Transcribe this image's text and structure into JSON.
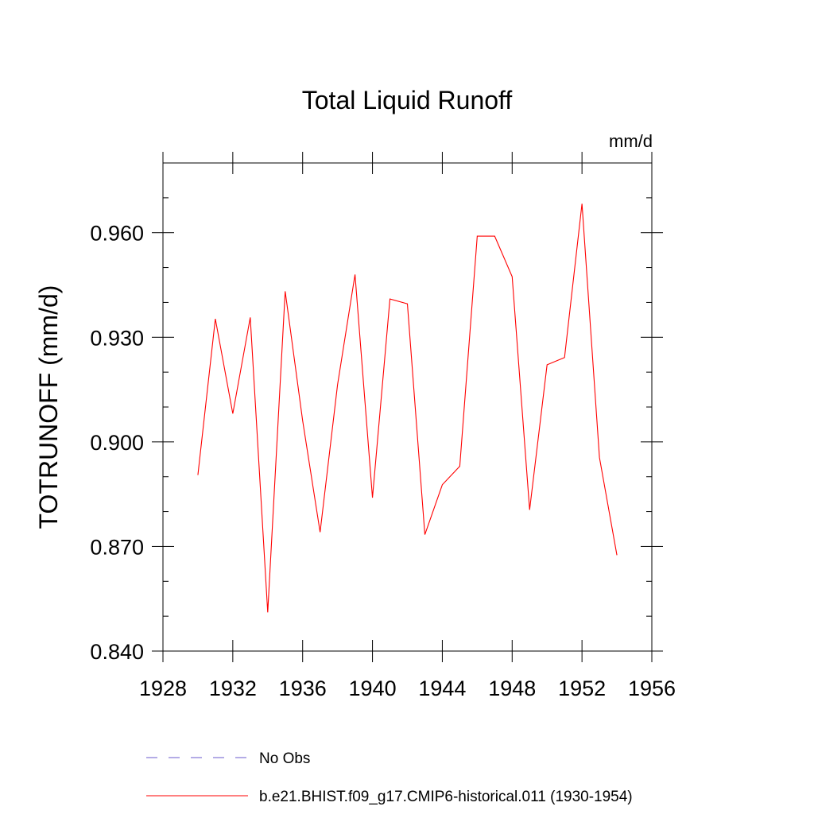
{
  "chart_data": {
    "type": "line",
    "title": "Total Liquid Runoff",
    "units_label": "mm/d",
    "ylabel": "TOTRUNOFF  (mm/d)",
    "xlabel": "",
    "xlim": [
      1928,
      1956
    ],
    "ylim": [
      0.84,
      0.98
    ],
    "x_ticks": [
      1928,
      1932,
      1936,
      1940,
      1944,
      1948,
      1952,
      1956
    ],
    "x_tick_labels": [
      "1928",
      "1932",
      "1936",
      "1940",
      "1944",
      "1948",
      "1952",
      "1956"
    ],
    "y_ticks": [
      0.84,
      0.87,
      0.9,
      0.93,
      0.96
    ],
    "y_tick_labels": [
      "0.840",
      "0.870",
      "0.900",
      "0.930",
      "0.960"
    ],
    "y_minor_step": 0.01,
    "x_minor_step": 1,
    "grid": false,
    "legend_position": "bottom",
    "series": [
      {
        "name": "b.e21.BHIST.f09_g17.CMIP6-historical.011 (1930-1954)",
        "color": "#ff0000",
        "style": "solid",
        "x": [
          1930,
          1931,
          1932,
          1933,
          1934,
          1935,
          1936,
          1937,
          1938,
          1939,
          1940,
          1941,
          1942,
          1943,
          1944,
          1945,
          1946,
          1947,
          1948,
          1949,
          1950,
          1951,
          1952,
          1953,
          1954
        ],
        "y": [
          0.8905,
          0.9353,
          0.9081,
          0.9357,
          0.8511,
          0.9432,
          0.9061,
          0.8741,
          0.9164,
          0.948,
          0.884,
          0.941,
          0.9396,
          0.8734,
          0.8877,
          0.893,
          0.959,
          0.959,
          0.9474,
          0.8805,
          0.9221,
          0.9242,
          0.9683,
          0.8955,
          0.8675
        ]
      }
    ],
    "legend": [
      {
        "label": "No Obs",
        "color": "#6a5acd",
        "style": "dashed"
      },
      {
        "label": "b.e21.BHIST.f09_g17.CMIP6-historical.011 (1930-1954)",
        "color": "#ff0000",
        "style": "solid"
      }
    ]
  }
}
